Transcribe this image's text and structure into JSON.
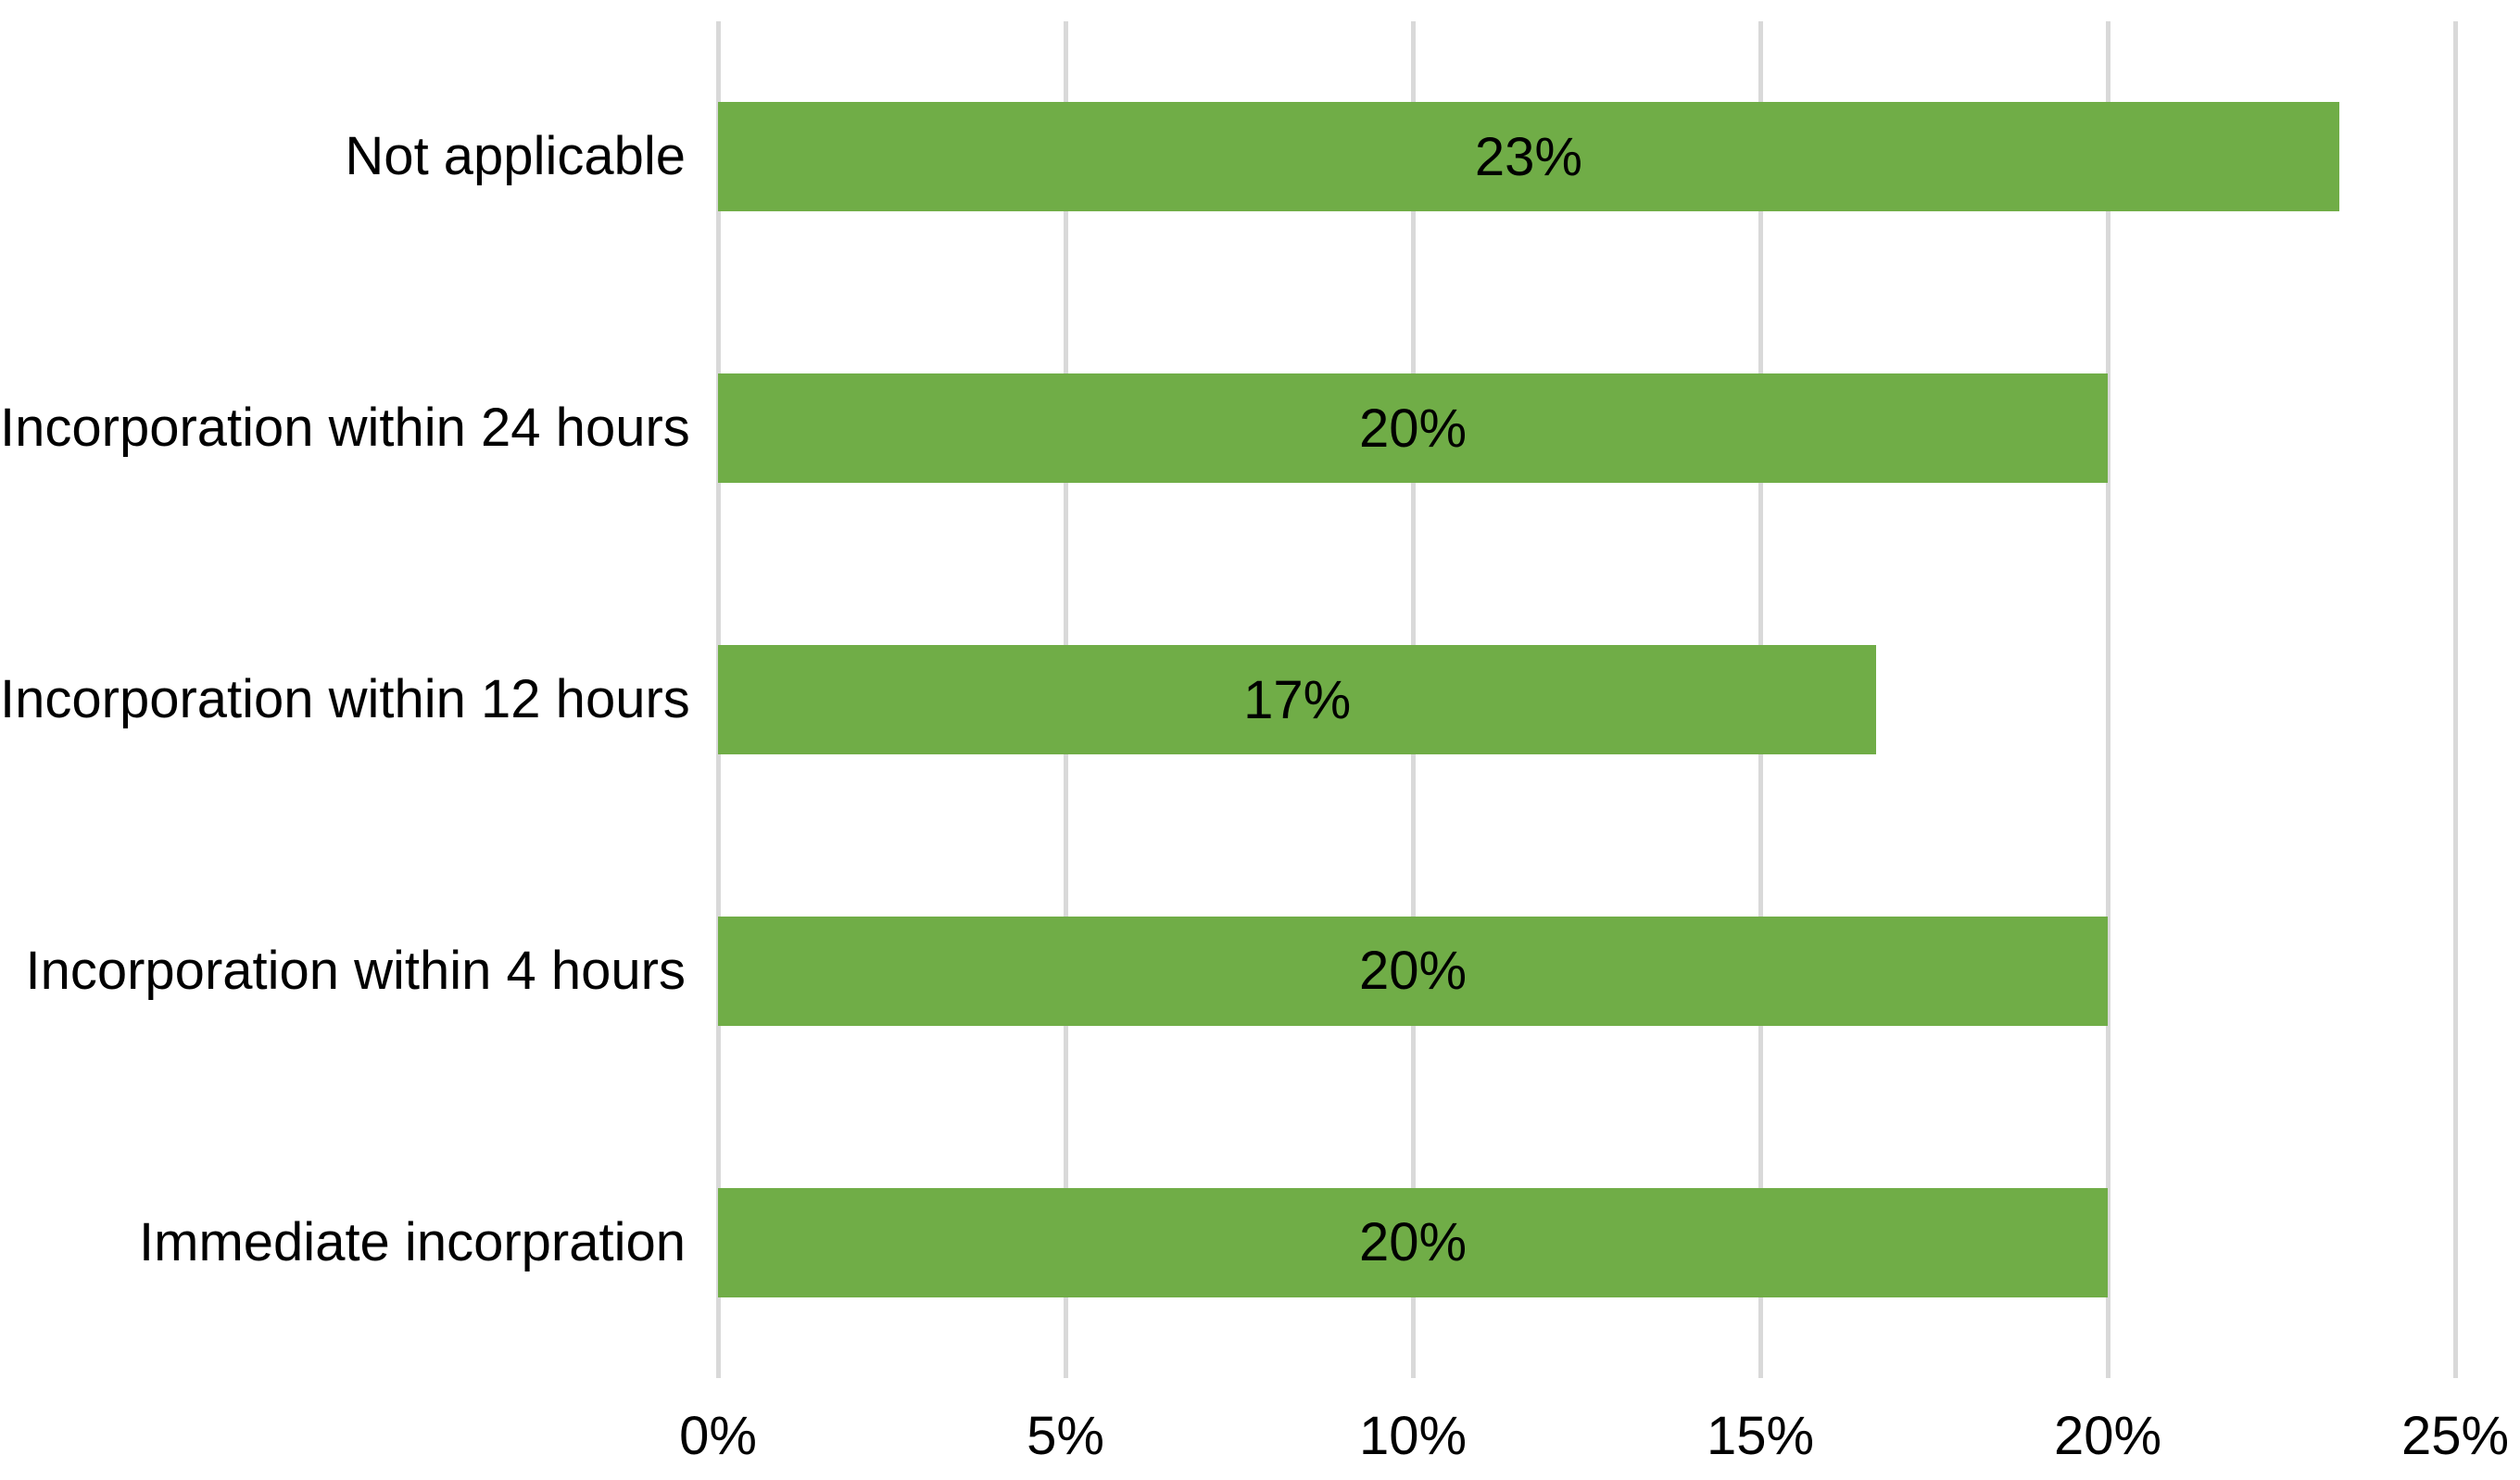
{
  "chart_data": {
    "type": "bar",
    "orientation": "horizontal",
    "categories": [
      "Not applicable",
      "Incorporation within 24 hours",
      "Incorporation within 12 hours",
      "Incorporation within 4 hours",
      "Immediate incorpration"
    ],
    "values": [
      23.33,
      20,
      16.67,
      20,
      20
    ],
    "bar_labels": [
      "23%",
      "20%",
      "17%",
      "20%",
      "20%"
    ],
    "xlim": [
      0,
      25
    ],
    "x_tick_values": [
      0,
      5,
      10,
      15,
      20,
      25
    ],
    "x_tick_labels": [
      "0%",
      "5%",
      "10%",
      "15%",
      "20%",
      "25%"
    ],
    "grid": true,
    "legend": false,
    "colors": {
      "bar": "#70AD47",
      "gridline": "#D9D9D9",
      "text": "#000000",
      "background": "#FFFFFF"
    }
  }
}
